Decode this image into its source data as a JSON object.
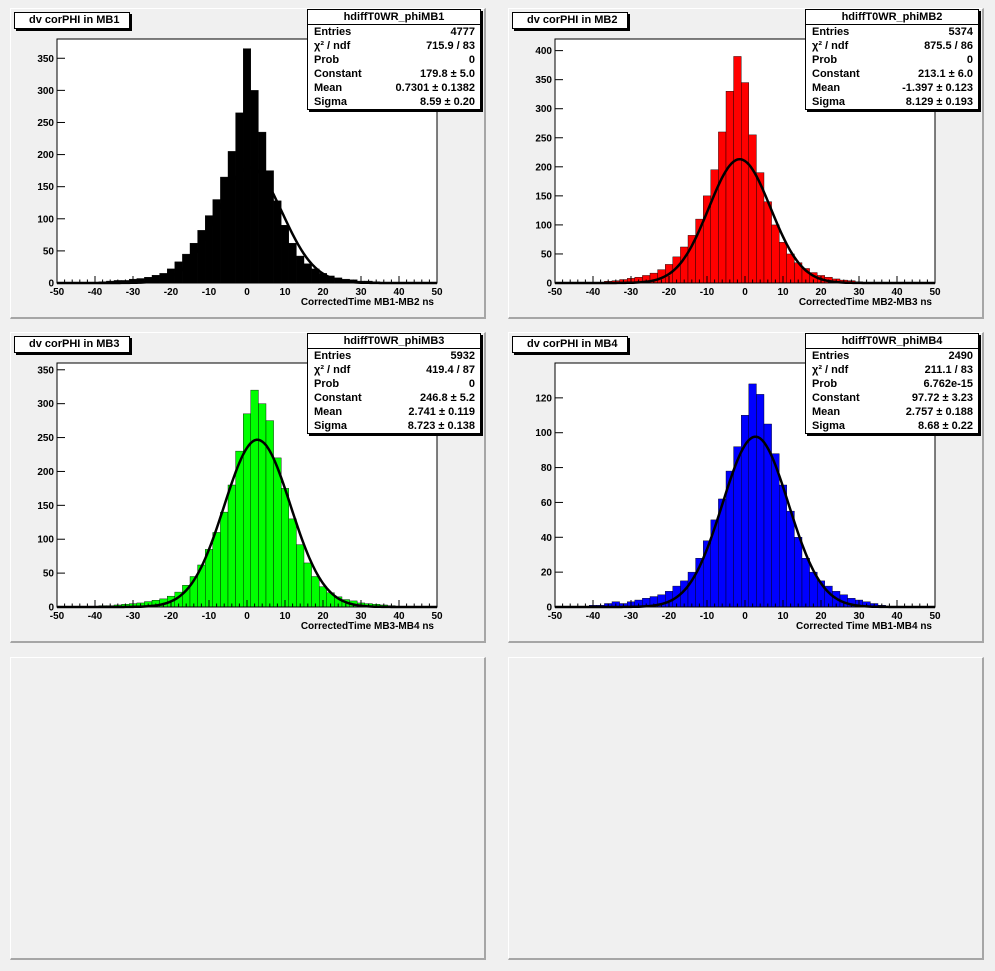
{
  "chart_data": [
    {
      "type": "bar",
      "pad_title": "dv corPHI in MB1",
      "hist_name": "hdiffT0WR_phiMB1",
      "xlabel": "CorrectedTime MB1-MB2   ns",
      "xlim": [
        -50,
        50
      ],
      "ylim": [
        0,
        380
      ],
      "xticks": [
        -50,
        -40,
        -30,
        -20,
        -10,
        0,
        10,
        20,
        30,
        40,
        50
      ],
      "yticks": [
        0,
        50,
        100,
        150,
        200,
        250,
        300,
        350
      ],
      "color": "#000000",
      "stats": [
        {
          "label": "Entries",
          "value": "4777"
        },
        {
          "label": "χ² / ndf",
          "value": "715.9 / 83"
        },
        {
          "label": "Prob",
          "value": "0"
        },
        {
          "label": "Constant",
          "value": "179.8 ± 5.0"
        },
        {
          "label": "Mean",
          "value": "0.7301 ± 0.1382"
        },
        {
          "label": "Sigma",
          "value": "8.59 ± 0.20"
        }
      ],
      "fit": {
        "constant": 179.8,
        "mean": 0.7301,
        "sigma": 8.59
      },
      "x": [
        -38,
        -36,
        -34,
        -32,
        -30,
        -28,
        -26,
        -24,
        -22,
        -20,
        -18,
        -16,
        -14,
        -12,
        -10,
        -8,
        -6,
        -4,
        -2,
        0,
        2,
        4,
        6,
        8,
        10,
        12,
        14,
        16,
        18,
        20,
        22,
        24,
        26,
        28,
        30,
        32,
        34
      ],
      "values": [
        2,
        3,
        4,
        4,
        6,
        7,
        9,
        12,
        15,
        22,
        33,
        45,
        62,
        82,
        105,
        130,
        165,
        205,
        265,
        365,
        300,
        235,
        175,
        128,
        90,
        62,
        42,
        30,
        22,
        15,
        11,
        8,
        6,
        5,
        3,
        3,
        2
      ]
    },
    {
      "type": "bar",
      "pad_title": "dv corPHI in MB2",
      "hist_name": "hdiffT0WR_phiMB2",
      "xlabel": "CorrectedTime MB2-MB3   ns",
      "xlim": [
        -50,
        50
      ],
      "ylim": [
        0,
        420
      ],
      "xticks": [
        -50,
        -40,
        -30,
        -20,
        -10,
        0,
        10,
        20,
        30,
        40,
        50
      ],
      "yticks": [
        0,
        50,
        100,
        150,
        200,
        250,
        300,
        350,
        400
      ],
      "color": "#ff0000",
      "stats": [
        {
          "label": "Entries",
          "value": "5374"
        },
        {
          "label": "χ² / ndf",
          "value": "875.5 / 86"
        },
        {
          "label": "Prob",
          "value": "0"
        },
        {
          "label": "Constant",
          "value": "213.1 ± 6.0"
        },
        {
          "label": "Mean",
          "value": "-1.397 ± 0.123"
        },
        {
          "label": "Sigma",
          "value": "8.129 ± 0.193"
        }
      ],
      "fit": {
        "constant": 213.1,
        "mean": -1.397,
        "sigma": 8.129
      },
      "x": [
        -36,
        -34,
        -32,
        -30,
        -28,
        -26,
        -24,
        -22,
        -20,
        -18,
        -16,
        -14,
        -12,
        -10,
        -8,
        -6,
        -4,
        -2,
        0,
        2,
        4,
        6,
        8,
        10,
        12,
        14,
        16,
        18,
        20,
        22,
        24,
        26,
        28,
        30
      ],
      "values": [
        3,
        4,
        6,
        8,
        10,
        13,
        17,
        23,
        32,
        45,
        62,
        82,
        110,
        150,
        195,
        260,
        330,
        390,
        345,
        255,
        190,
        140,
        100,
        70,
        50,
        35,
        25,
        18,
        13,
        10,
        7,
        5,
        4,
        2
      ]
    },
    {
      "type": "bar",
      "pad_title": "dv corPHI in MB3",
      "hist_name": "hdiffT0WR_phiMB3",
      "xlabel": "CorrectedTime MB3-MB4   ns",
      "xlim": [
        -50,
        50
      ],
      "ylim": [
        0,
        360
      ],
      "xticks": [
        -50,
        -40,
        -30,
        -20,
        -10,
        0,
        10,
        20,
        30,
        40,
        50
      ],
      "yticks": [
        0,
        50,
        100,
        150,
        200,
        250,
        300,
        350
      ],
      "color": "#00ff00",
      "stats": [
        {
          "label": "Entries",
          "value": "5932"
        },
        {
          "label": "χ² / ndf",
          "value": "419.4 / 87"
        },
        {
          "label": "Prob",
          "value": "0"
        },
        {
          "label": "Constant",
          "value": "246.8 ± 5.2"
        },
        {
          "label": "Mean",
          "value": "2.741 ± 0.119"
        },
        {
          "label": "Sigma",
          "value": "8.723 ± 0.138"
        }
      ],
      "fit": {
        "constant": 246.8,
        "mean": 2.741,
        "sigma": 8.723
      },
      "x": [
        -38,
        -36,
        -34,
        -32,
        -30,
        -28,
        -26,
        -24,
        -22,
        -20,
        -18,
        -16,
        -14,
        -12,
        -10,
        -8,
        -6,
        -4,
        -2,
        0,
        2,
        4,
        6,
        8,
        10,
        12,
        14,
        16,
        18,
        20,
        22,
        24,
        26,
        28,
        30,
        32,
        34,
        36,
        38
      ],
      "values": [
        2,
        2,
        3,
        4,
        5,
        6,
        8,
        10,
        12,
        16,
        22,
        32,
        45,
        62,
        85,
        110,
        140,
        180,
        230,
        285,
        320,
        300,
        275,
        220,
        175,
        130,
        92,
        65,
        45,
        30,
        21,
        15,
        11,
        9,
        6,
        5,
        4,
        3,
        2
      ]
    },
    {
      "type": "bar",
      "pad_title": "dv corPHI in MB4",
      "hist_name": "hdiffT0WR_phiMB4",
      "xlabel": "Corrected Time MB1-MB4   ns",
      "xlim": [
        -50,
        50
      ],
      "ylim": [
        0,
        140
      ],
      "xticks": [
        -50,
        -40,
        -30,
        -20,
        -10,
        0,
        10,
        20,
        30,
        40,
        50
      ],
      "yticks": [
        0,
        20,
        40,
        60,
        80,
        100,
        120
      ],
      "color": "#0000ff",
      "stats": [
        {
          "label": "Entries",
          "value": "2490"
        },
        {
          "label": "χ² / ndf",
          "value": "211.1 / 83"
        },
        {
          "label": "Prob",
          "value": "6.762e-15"
        },
        {
          "label": "Constant",
          "value": "97.72 ± 3.23"
        },
        {
          "label": "Mean",
          "value": "2.757 ± 0.188"
        },
        {
          "label": "Sigma",
          "value": "8.68 ± 0.22"
        }
      ],
      "fit": {
        "constant": 97.72,
        "mean": 2.757,
        "sigma": 8.68
      },
      "x": [
        -40,
        -38,
        -36,
        -34,
        -32,
        -30,
        -28,
        -26,
        -24,
        -22,
        -20,
        -18,
        -16,
        -14,
        -12,
        -10,
        -8,
        -6,
        -4,
        -2,
        0,
        2,
        4,
        6,
        8,
        10,
        12,
        14,
        16,
        18,
        20,
        22,
        24,
        26,
        28,
        30,
        32,
        34,
        36
      ],
      "values": [
        1,
        1,
        2,
        3,
        2,
        3,
        4,
        5,
        6,
        7,
        9,
        12,
        15,
        20,
        28,
        38,
        50,
        62,
        78,
        92,
        110,
        128,
        122,
        105,
        88,
        70,
        55,
        40,
        28,
        20,
        15,
        12,
        9,
        7,
        5,
        4,
        3,
        2,
        1
      ]
    }
  ]
}
